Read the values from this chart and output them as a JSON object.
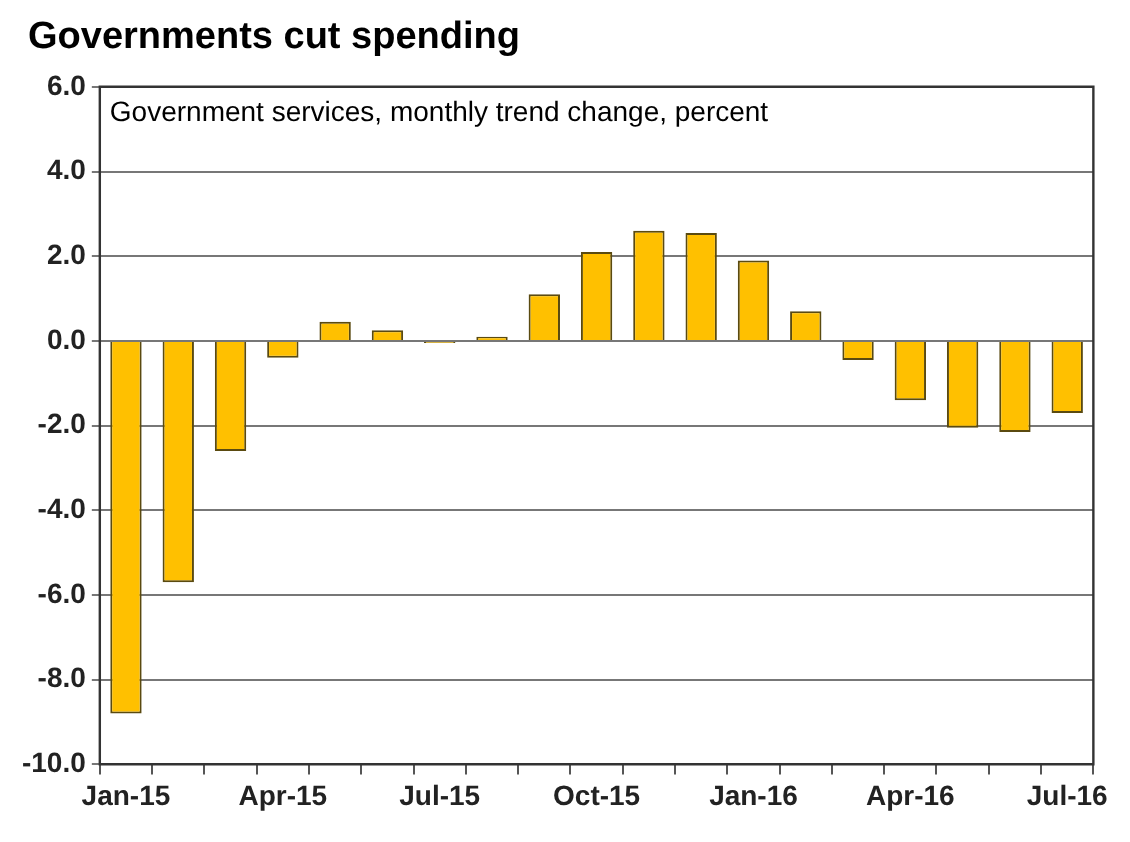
{
  "chart_data": {
    "type": "bar",
    "title": "Governments cut spending",
    "subtitle": "Government services, monthly trend change, percent",
    "categories": [
      "Jan-15",
      null,
      null,
      "Apr-15",
      null,
      null,
      "Jul-15",
      null,
      null,
      "Oct-15",
      null,
      null,
      "Jan-16",
      null,
      null,
      "Apr-16",
      null,
      null,
      "Jul-16"
    ],
    "values": [
      -8.8,
      -5.7,
      -2.6,
      -0.4,
      0.45,
      0.25,
      -0.05,
      0.1,
      1.1,
      2.1,
      2.6,
      2.55,
      1.9,
      0.7,
      -0.45,
      -1.4,
      -2.05,
      -2.15,
      -1.7
    ],
    "color": "#ffc000",
    "ylim": [
      -10,
      6
    ],
    "yticks": [
      {
        "value": -10,
        "label": "-10.0"
      },
      {
        "value": -8,
        "label": "-8.0"
      },
      {
        "value": -6,
        "label": "-6.0"
      },
      {
        "value": -4,
        "label": "-4.0"
      },
      {
        "value": -2,
        "label": "-2.0"
      },
      {
        "value": 0,
        "label": "0.0"
      },
      {
        "value": 2,
        "label": "2.0"
      },
      {
        "value": 4,
        "label": "4.0"
      },
      {
        "value": 6,
        "label": "6.0"
      }
    ],
    "grid": "y"
  }
}
